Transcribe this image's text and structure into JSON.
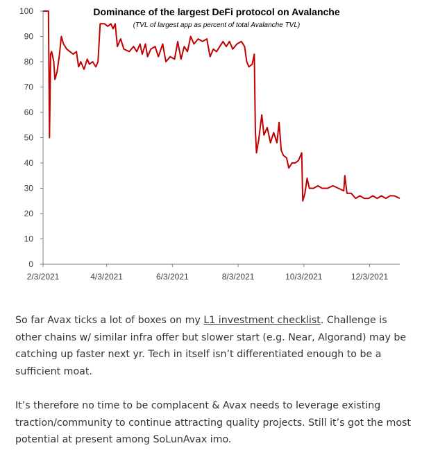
{
  "chart_data": {
    "type": "line",
    "title": "Dominance of the largest DeFi protocol on Avalanche",
    "subtitle": "(TVL of largest app as percent of total Avalanche TVL)",
    "xlabel": "",
    "ylabel": "",
    "ylim": [
      0,
      100
    ],
    "y_ticks": [
      0,
      10,
      20,
      30,
      40,
      50,
      60,
      70,
      80,
      90,
      100
    ],
    "x_ticks": [
      "2/3/2021",
      "4/3/2021",
      "6/3/2021",
      "8/3/2021",
      "10/3/2021",
      "12/3/2021"
    ],
    "x_range": [
      "2021-02-03",
      "2021-12-31"
    ],
    "grid": false,
    "legend": "none",
    "series": [
      {
        "color": "#c00000",
        "points": [
          [
            "2021-02-03",
            100
          ],
          [
            "2021-02-08",
            100
          ],
          [
            "2021-02-09",
            50
          ],
          [
            "2021-02-10",
            83
          ],
          [
            "2021-02-11",
            84
          ],
          [
            "2021-02-13",
            80
          ],
          [
            "2021-02-14",
            73
          ],
          [
            "2021-02-16",
            76
          ],
          [
            "2021-02-18",
            82
          ],
          [
            "2021-02-20",
            90
          ],
          [
            "2021-02-22",
            87
          ],
          [
            "2021-02-25",
            85
          ],
          [
            "2021-02-28",
            84
          ],
          [
            "2021-03-03",
            83
          ],
          [
            "2021-03-06",
            84
          ],
          [
            "2021-03-08",
            78
          ],
          [
            "2021-03-10",
            80
          ],
          [
            "2021-03-13",
            77
          ],
          [
            "2021-03-16",
            81
          ],
          [
            "2021-03-18",
            79
          ],
          [
            "2021-03-21",
            80
          ],
          [
            "2021-03-24",
            78
          ],
          [
            "2021-03-26",
            80
          ],
          [
            "2021-03-28",
            95
          ],
          [
            "2021-04-01",
            95
          ],
          [
            "2021-04-04",
            94
          ],
          [
            "2021-04-07",
            95
          ],
          [
            "2021-04-09",
            93
          ],
          [
            "2021-04-11",
            95
          ],
          [
            "2021-04-13",
            86
          ],
          [
            "2021-04-16",
            89
          ],
          [
            "2021-04-19",
            85
          ],
          [
            "2021-04-24",
            84
          ],
          [
            "2021-04-28",
            86
          ],
          [
            "2021-05-01",
            84
          ],
          [
            "2021-05-04",
            87
          ],
          [
            "2021-05-06",
            83
          ],
          [
            "2021-05-09",
            87
          ],
          [
            "2021-05-11",
            82
          ],
          [
            "2021-05-14",
            85
          ],
          [
            "2021-05-18",
            86
          ],
          [
            "2021-05-21",
            82
          ],
          [
            "2021-05-25",
            87
          ],
          [
            "2021-05-28",
            80
          ],
          [
            "2021-06-01",
            82
          ],
          [
            "2021-06-05",
            81
          ],
          [
            "2021-06-08",
            88
          ],
          [
            "2021-06-11",
            81
          ],
          [
            "2021-06-14",
            86
          ],
          [
            "2021-06-17",
            84
          ],
          [
            "2021-06-20",
            90
          ],
          [
            "2021-06-23",
            87
          ],
          [
            "2021-06-27",
            89
          ],
          [
            "2021-07-01",
            88
          ],
          [
            "2021-07-05",
            89
          ],
          [
            "2021-07-08",
            82
          ],
          [
            "2021-07-11",
            85
          ],
          [
            "2021-07-14",
            84
          ],
          [
            "2021-07-17",
            86
          ],
          [
            "2021-07-20",
            88
          ],
          [
            "2021-07-23",
            86
          ],
          [
            "2021-07-26",
            88
          ],
          [
            "2021-07-29",
            85
          ],
          [
            "2021-08-02",
            87
          ],
          [
            "2021-08-06",
            88
          ],
          [
            "2021-08-09",
            86
          ],
          [
            "2021-08-11",
            80
          ],
          [
            "2021-08-13",
            78
          ],
          [
            "2021-08-16",
            79
          ],
          [
            "2021-08-18",
            83
          ],
          [
            "2021-08-19",
            53
          ],
          [
            "2021-08-20",
            44
          ],
          [
            "2021-08-22",
            49
          ],
          [
            "2021-08-25",
            59
          ],
          [
            "2021-08-27",
            51
          ],
          [
            "2021-08-30",
            54
          ],
          [
            "2021-09-02",
            48
          ],
          [
            "2021-09-05",
            52
          ],
          [
            "2021-09-08",
            48
          ],
          [
            "2021-09-10",
            56
          ],
          [
            "2021-09-12",
            45
          ],
          [
            "2021-09-14",
            43
          ],
          [
            "2021-09-17",
            42
          ],
          [
            "2021-09-19",
            38
          ],
          [
            "2021-09-22",
            40
          ],
          [
            "2021-09-25",
            40
          ],
          [
            "2021-09-28",
            41
          ],
          [
            "2021-10-01",
            44
          ],
          [
            "2021-10-02",
            25
          ],
          [
            "2021-10-04",
            28
          ],
          [
            "2021-10-06",
            34
          ],
          [
            "2021-10-08",
            30
          ],
          [
            "2021-10-12",
            30
          ],
          [
            "2021-10-16",
            31
          ],
          [
            "2021-10-20",
            30
          ],
          [
            "2021-10-25",
            30
          ],
          [
            "2021-10-30",
            31
          ],
          [
            "2021-11-04",
            30
          ],
          [
            "2021-11-09",
            29
          ],
          [
            "2021-11-10",
            35
          ],
          [
            "2021-11-12",
            28
          ],
          [
            "2021-11-16",
            28
          ],
          [
            "2021-11-20",
            26
          ],
          [
            "2021-11-24",
            27
          ],
          [
            "2021-11-28",
            26
          ],
          [
            "2021-12-02",
            26
          ],
          [
            "2021-12-06",
            27
          ],
          [
            "2021-12-10",
            26
          ],
          [
            "2021-12-14",
            27
          ],
          [
            "2021-12-18",
            26
          ],
          [
            "2021-12-22",
            27
          ],
          [
            "2021-12-26",
            27
          ],
          [
            "2021-12-31",
            26
          ]
        ]
      }
    ]
  },
  "text": {
    "para1_before_link": "So far Avax ticks a lot of boxes on my ",
    "para1_link": "L1 investment checklist",
    "para1_after_link": ". Challenge is other chains w/ similar infra offer but slower start (e.g. Near, Algorand) may be catching up faster next yr. Tech in itself isn’t differentiated enough to be a sufficient moat.",
    "para2": "It’s therefore no time to be complacent & Avax needs to leverage existing traction/community to continue attracting quality projects. Still it’s got the most potential at present among SoLunAvax imo."
  }
}
